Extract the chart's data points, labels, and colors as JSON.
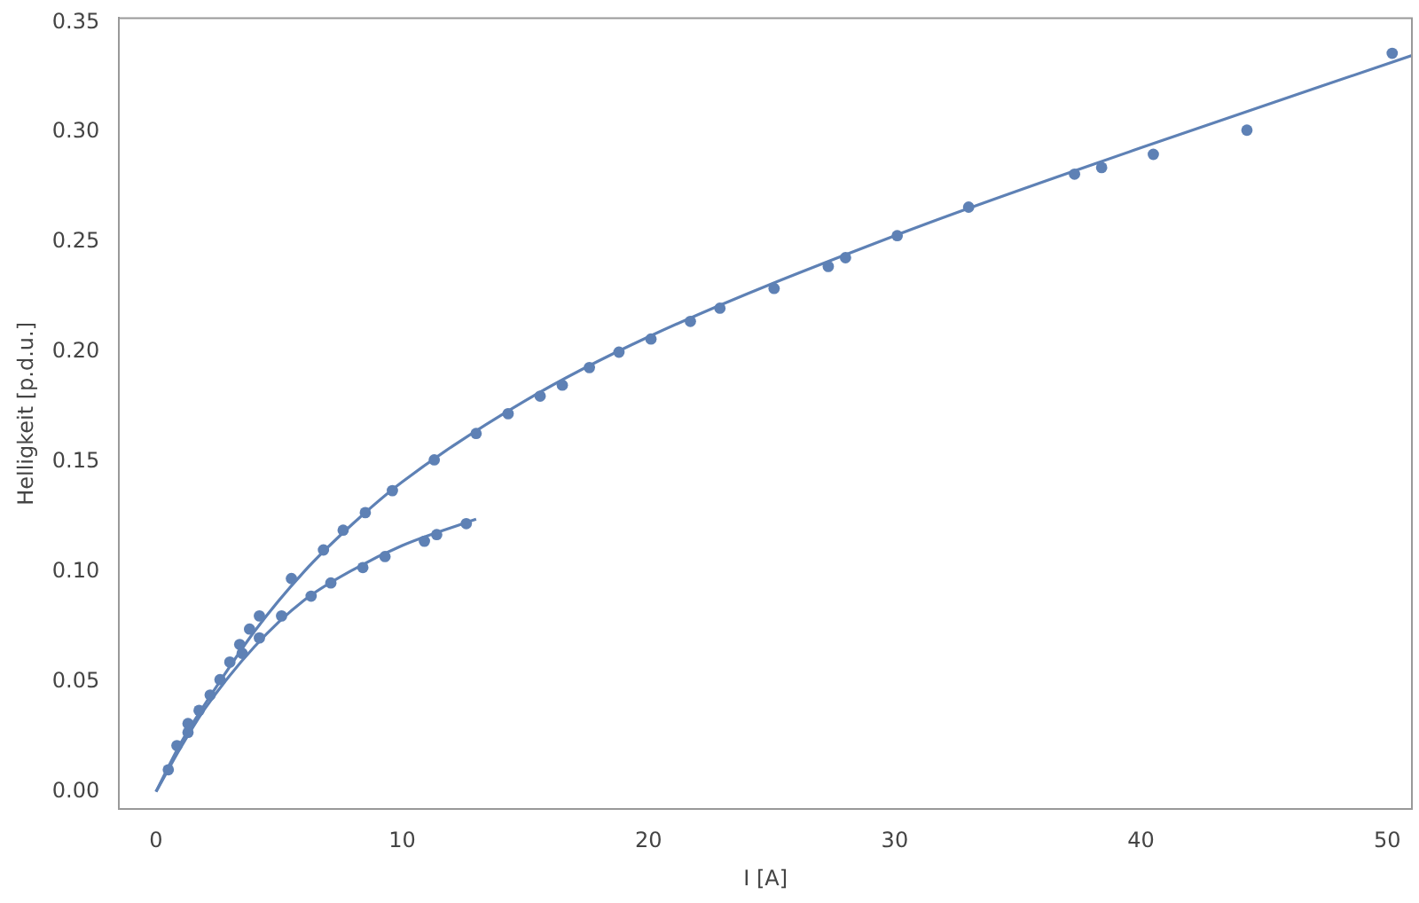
{
  "chart_data": {
    "type": "scatter",
    "xlabel": "I [A]",
    "ylabel": "Helligkeit [p.d.u.]",
    "xlim": [
      -1.5,
      51
    ],
    "ylim": [
      -0.008,
      0.352
    ],
    "xticks": [
      0,
      10,
      20,
      30,
      40,
      50
    ],
    "yticks": [
      {
        "value": 0,
        "label": "0.00"
      },
      {
        "value": 0.05,
        "label": "0.05"
      },
      {
        "value": 0.1,
        "label": "0.10"
      },
      {
        "value": 0.15,
        "label": "0.15"
      },
      {
        "value": 0.2,
        "label": "0.20"
      },
      {
        "value": 0.25,
        "label": "0.25"
      },
      {
        "value": 0.3,
        "label": "0.30"
      },
      {
        "value": 0.35,
        "label": "0.35"
      }
    ],
    "grid": false,
    "legend": false,
    "series": [
      {
        "marker": "circle",
        "color": "#5e81b5",
        "x": [
          0.5,
          0.85,
          1.3,
          1.75,
          2.2,
          2.6,
          3.0,
          3.4,
          3.8,
          4.2,
          5.5,
          6.8,
          7.6,
          8.5,
          9.6,
          11.3,
          13.0,
          14.3,
          15.6,
          16.5,
          17.6,
          18.8,
          20.1,
          21.7,
          22.9,
          25.1,
          27.3,
          28.0,
          30.1,
          33.0,
          37.3,
          38.4,
          40.5,
          44.3,
          50.2
        ],
        "values": [
          0.01,
          0.021,
          0.031,
          0.037,
          0.044,
          0.051,
          0.059,
          0.067,
          0.074,
          0.08,
          0.097,
          0.11,
          0.119,
          0.127,
          0.137,
          0.151,
          0.163,
          0.172,
          0.18,
          0.185,
          0.193,
          0.2,
          0.206,
          0.214,
          0.22,
          0.229,
          0.239,
          0.243,
          0.253,
          0.266,
          0.281,
          0.284,
          0.29,
          0.301,
          0.336
        ]
      },
      {
        "marker": "circle",
        "color": "#5e81b5",
        "x": [
          1.3,
          2.2,
          3.0,
          3.5,
          4.2,
          5.1,
          6.3,
          7.1,
          8.4,
          9.3,
          10.9,
          11.4,
          12.6
        ],
        "values": [
          0.027,
          null,
          null,
          0.063,
          0.07,
          0.08,
          0.089,
          0.095,
          0.102,
          0.107,
          0.114,
          0.117,
          0.122
        ]
      },
      {
        "type": "line",
        "marker": "none",
        "color": "#5e81b5",
        "x": [
          0,
          1,
          2,
          4,
          6,
          8,
          10,
          15,
          20,
          30,
          40,
          51
        ],
        "values": [
          0,
          0.022,
          0.04,
          0.073,
          0.1,
          0.122,
          0.141,
          0.178,
          0.207,
          0.253,
          0.293,
          0.335
        ]
      },
      {
        "type": "line",
        "marker": "none",
        "color": "#5e81b5",
        "x": [
          0,
          1,
          2,
          4,
          6,
          8,
          10,
          13
        ],
        "values": [
          0,
          0.02,
          0.038,
          0.066,
          0.087,
          0.101,
          0.112,
          0.124
        ]
      }
    ]
  }
}
